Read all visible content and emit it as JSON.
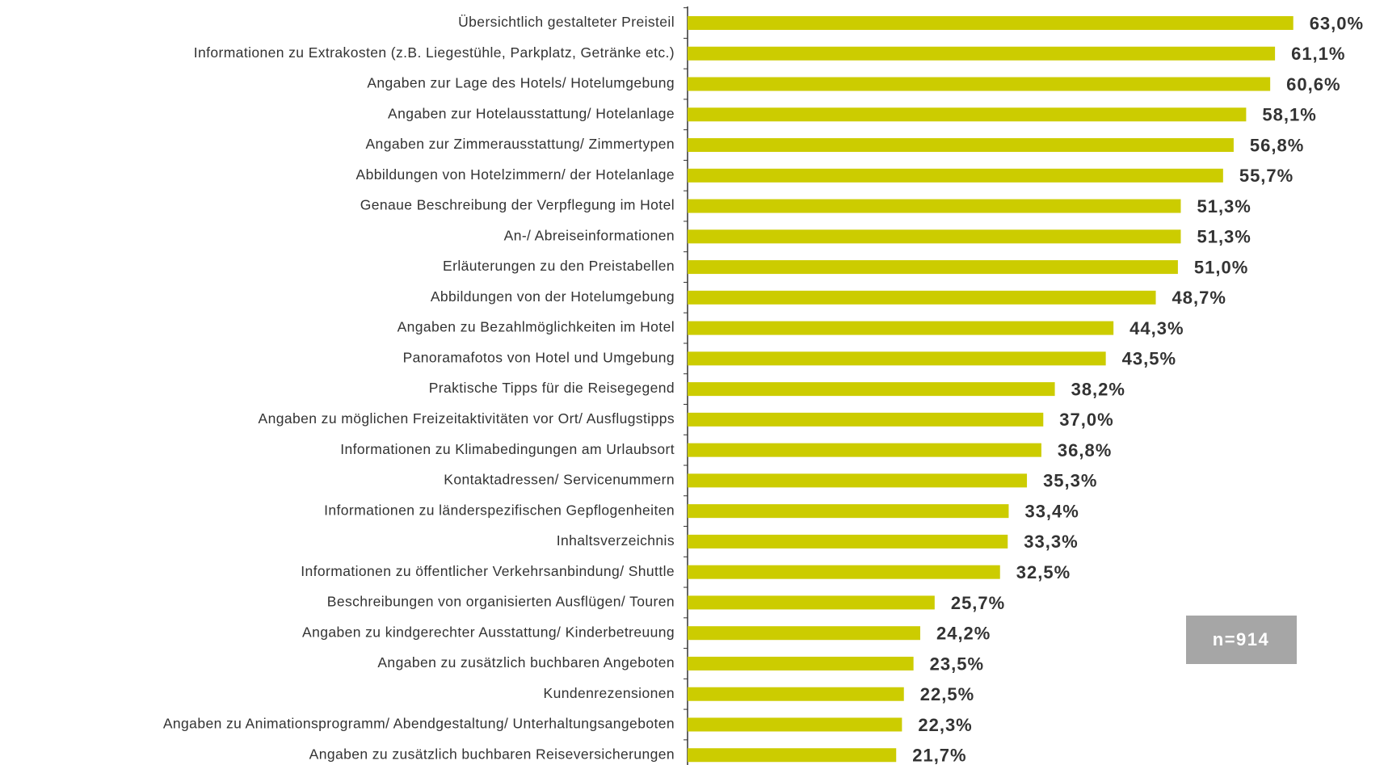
{
  "chart_data": {
    "type": "hbar",
    "categories": [
      "Übersichtlich gestalteter Preisteil",
      "Informationen zu Extrakosten (z.B. Liegestühle, Parkplatz, Getränke etc.)",
      "Angaben zur Lage des Hotels/ Hotelumgebung",
      "Angaben zur Hotelausstattung/ Hotelanlage",
      "Angaben zur Zimmerausstattung/ Zimmertypen",
      "Abbildungen von Hotelzimmern/ der Hotelanlage",
      "Genaue Beschreibung der Verpflegung im Hotel",
      "An-/ Abreiseinformationen",
      "Erläuterungen zu den Preistabellen",
      "Abbildungen von der Hotelumgebung",
      "Angaben zu Bezahlmöglichkeiten im Hotel",
      "Panoramafotos von Hotel und Umgebung",
      "Praktische Tipps für die Reisegegend",
      "Angaben zu möglichen Freizeitaktivitäten vor Ort/ Ausflugstipps",
      "Informationen zu Klimabedingungen am Urlaubsort",
      "Kontaktadressen/ Servicenummern",
      "Informationen zu länderspezifischen Gepflogenheiten",
      "Inhaltsverzeichnis",
      "Informationen zu öffentlicher Verkehrsanbindung/ Shuttle",
      "Beschreibungen von organisierten Ausflügen/ Touren",
      "Angaben zu kindgerechter Ausstattung/ Kinderbetreuung",
      "Angaben zu zusätzlich buchbaren Angeboten",
      "Kundenrezensionen",
      "Angaben zu Animationsprogramm/ Abendgestaltung/ Unterhaltungsangeboten",
      "Angaben zu zusätzlich buchbaren Reiseversicherungen"
    ],
    "values": [
      63.0,
      61.1,
      60.6,
      58.1,
      56.8,
      55.7,
      51.3,
      51.3,
      51.0,
      48.7,
      44.3,
      43.5,
      38.2,
      37.0,
      36.8,
      35.3,
      33.4,
      33.3,
      32.5,
      25.7,
      24.2,
      23.5,
      22.5,
      22.3,
      21.7
    ],
    "value_labels": [
      "63,0%",
      "61,1%",
      "60,6%",
      "58,1%",
      "56,8%",
      "55,7%",
      "51,3%",
      "51,3%",
      "51,0%",
      "48,7%",
      "44,3%",
      "43,5%",
      "38,2%",
      "37,0%",
      "36,8%",
      "35,3%",
      "33,4%",
      "33,3%",
      "32,5%",
      "25,7%",
      "24,2%",
      "23,5%",
      "22,5%",
      "22,3%",
      "21,7%"
    ],
    "color": "#cccc00",
    "xlim": [
      0,
      70
    ],
    "annotation": "n=914"
  }
}
